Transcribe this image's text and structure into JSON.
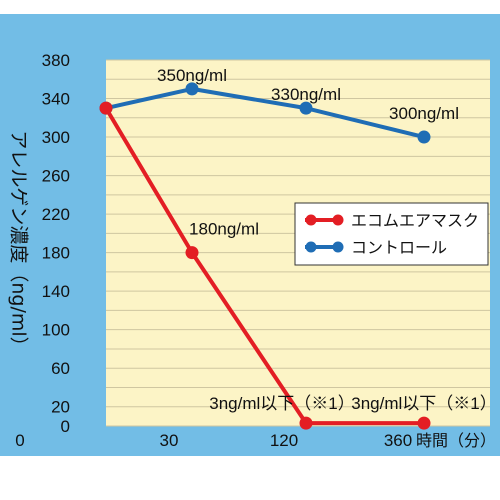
{
  "chart_data": {
    "type": "line",
    "title": "",
    "ylabel": "アレルゲン濃度（ng/ml）",
    "xlabel": "時間（分）",
    "ylim": [
      0,
      380
    ],
    "yticks": [
      0,
      20,
      60,
      100,
      140,
      180,
      220,
      260,
      300,
      340,
      380
    ],
    "categories": [
      "0",
      "30",
      "120",
      "360"
    ],
    "grid": true,
    "legend_position": "right",
    "series": [
      {
        "name": "エコムエアマスク",
        "color": "#e31e24",
        "values": [
          330,
          180,
          3,
          3
        ]
      },
      {
        "name": "コントロール",
        "color": "#1f6db5",
        "values": [
          330,
          350,
          330,
          300
        ]
      }
    ],
    "annotations": [
      {
        "text": "350ng/ml",
        "series": 1,
        "index": 1
      },
      {
        "text": "330ng/ml",
        "series": 1,
        "index": 2
      },
      {
        "text": "300ng/ml",
        "series": 1,
        "index": 3
      },
      {
        "text": "180ng/ml",
        "series": 0,
        "index": 1
      },
      {
        "text": "3ng/ml以下（※1）",
        "series": 0,
        "index": 2
      },
      {
        "text": "3ng/ml以下（※1）",
        "series": 0,
        "index": 3
      }
    ]
  },
  "colors": {
    "background": "#72bde6",
    "plot_area": "#fcf4c6",
    "grid": "#cfc6a0"
  }
}
